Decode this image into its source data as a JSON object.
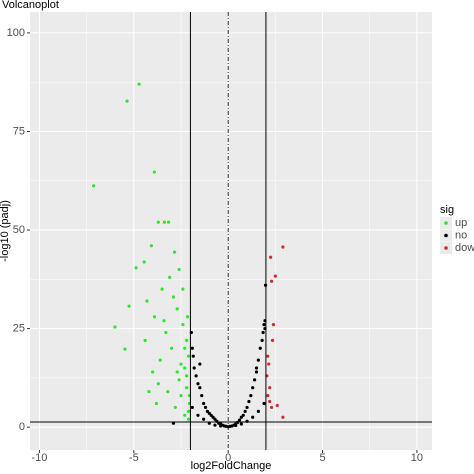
{
  "chart_data": {
    "type": "scatter",
    "title": "Volcanoplot",
    "x_label": "log2FoldChange",
    "y_label": "-log10 (padj)",
    "xlim": [
      -10.5,
      10.8
    ],
    "ylim": [
      -5.8,
      105.3
    ],
    "xticks": [
      -10,
      -5,
      0,
      5,
      10
    ],
    "yticks": [
      0,
      25,
      50,
      75,
      100
    ],
    "grid": true,
    "vlines": [
      -2,
      2
    ],
    "vline_center": 0,
    "hline": 1.3,
    "legend_title": "sig",
    "legend_position": "right",
    "series": [
      {
        "name": "up",
        "color": "#2ee62e",
        "x": [
          -4.72,
          -5.36,
          -7.13,
          -3.91,
          -3.7,
          -3.38,
          -3.16,
          -4.07,
          -4.45,
          -4.88,
          -2.84,
          -6.0,
          -5.47,
          -5.25,
          -4.3,
          -3.9,
          -3.5,
          -3.1,
          -2.7,
          -2.4,
          -2.2,
          -2.1,
          -2.3,
          -2.6,
          -3.0,
          -3.3,
          -3.6,
          -4.0,
          -4.4,
          -2.5,
          -2.2,
          -2.05,
          -2.1,
          -2.3,
          -2.8,
          -3.2,
          -3.7,
          -2.4,
          -2.15,
          -2.6,
          -3.4,
          -2.9,
          -2.2,
          -2.05,
          -2.5,
          -3.8,
          -4.2,
          -2.3,
          -2.1,
          -2.7
        ],
        "values": [
          87,
          82.7,
          61.2,
          64.7,
          52,
          52,
          52,
          46,
          41.9,
          40.4,
          44.4,
          25.4,
          19.8,
          30.7,
          32,
          28,
          35,
          38,
          30,
          26,
          22,
          18,
          15,
          12,
          20,
          24,
          17,
          14,
          22,
          8,
          10,
          6,
          4,
          3,
          5,
          9,
          11,
          35,
          28,
          40,
          27,
          33,
          13,
          8,
          16,
          6,
          9,
          20,
          2,
          14
        ]
      },
      {
        "name": "no",
        "color": "#000000",
        "x": [
          -1.95,
          -1.9,
          -1.85,
          -1.8,
          -1.7,
          -1.6,
          -1.5,
          -1.4,
          -1.3,
          -1.2,
          -1.1,
          -1.0,
          -0.9,
          -0.8,
          -0.7,
          -0.6,
          -0.5,
          -0.4,
          -0.3,
          -0.2,
          -0.1,
          0,
          -1.9,
          -1.6,
          -1.3,
          -1.0,
          -0.7,
          -0.4,
          0.1,
          0.2,
          0.3,
          0.4,
          0.5,
          0.6,
          0.7,
          0.8,
          0.9,
          1.0,
          1.1,
          1.2,
          1.3,
          1.4,
          1.5,
          1.6,
          1.7,
          1.8,
          1.85,
          1.9,
          1.95,
          1.9,
          1.6,
          1.3,
          1.0,
          0.7,
          0.4,
          -1.5,
          1.5,
          -2.9,
          1.98,
          1.95
        ],
        "values": [
          24,
          20,
          18,
          15,
          13,
          11,
          10,
          8,
          6,
          5,
          4,
          3.5,
          3,
          2.5,
          2,
          1.5,
          1,
          0.8,
          0.5,
          0.3,
          0.2,
          0.1,
          5,
          3,
          2,
          1,
          0.5,
          0.3,
          0.2,
          0.3,
          0.5,
          0.8,
          1.2,
          1.8,
          2.5,
          3,
          4,
          5,
          6.5,
          8,
          10,
          12,
          14,
          17,
          20,
          22,
          24,
          26,
          25,
          6,
          4,
          2.5,
          1.5,
          0.8,
          0.4,
          16,
          15,
          1,
          36,
          27
        ]
      },
      {
        "name": "down",
        "color": "#d42a2a",
        "x": [
          2.3,
          2.5,
          2.9,
          2.25,
          2.4,
          2.1,
          2.15,
          2.2,
          2.3,
          2.6,
          2.9,
          2.1,
          2.05,
          2.35,
          2.2
        ],
        "values": [
          37,
          38.3,
          45.7,
          43.1,
          26,
          18,
          16,
          10,
          5,
          5.5,
          2.5,
          8,
          13,
          22,
          6.5
        ]
      }
    ]
  }
}
